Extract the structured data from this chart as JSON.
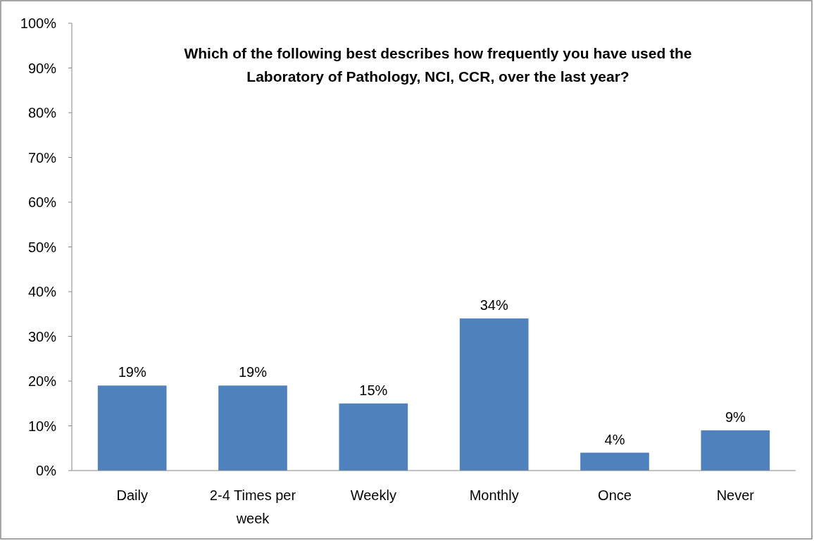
{
  "chart_data": {
    "type": "bar",
    "title": "Which of the following best describes how frequently you have used the Laboratory of Pathology, NCI, CCR, over the last year?",
    "categories": [
      "Daily",
      "2-4 Times per week",
      "Weekly",
      "Monthly",
      "Once",
      "Never"
    ],
    "values": [
      19,
      19,
      15,
      34,
      4,
      9
    ],
    "value_labels": [
      "19%",
      "19%",
      "15%",
      "34%",
      "4%",
      "9%"
    ],
    "color": "#4f81bd",
    "ylim": [
      0,
      100
    ],
    "yticks": [
      {
        "value": 0,
        "label": "0%"
      },
      {
        "value": 10,
        "label": "10%"
      },
      {
        "value": 20,
        "label": "20%"
      },
      {
        "value": 30,
        "label": "30%"
      },
      {
        "value": 40,
        "label": "40%"
      },
      {
        "value": 50,
        "label": "50%"
      },
      {
        "value": 60,
        "label": "60%"
      },
      {
        "value": 70,
        "label": "70%"
      },
      {
        "value": 80,
        "label": "80%"
      },
      {
        "value": 90,
        "label": "90%"
      },
      {
        "value": 100,
        "label": "100%"
      }
    ],
    "grid": false
  }
}
